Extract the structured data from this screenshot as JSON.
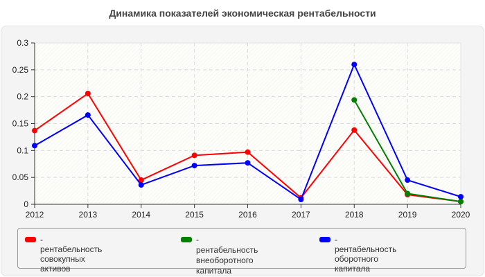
{
  "chart_data": {
    "type": "line",
    "title": "Динамика показателей экономическая рентабельности",
    "xlabel": "",
    "ylabel": "",
    "x": [
      "2012",
      "2013",
      "2014",
      "2015",
      "2016",
      "2017",
      "2018",
      "2019",
      "2020"
    ],
    "ylim": [
      0,
      0.3
    ],
    "yticks": [
      "0",
      "0.05",
      "0.1",
      "0.15",
      "0.2",
      "0.25",
      "0.3"
    ],
    "grid": true,
    "legend_position": "bottom",
    "series": [
      {
        "name": "рентабельность совокупных активов",
        "color": "#ff0000",
        "values": [
          0.137,
          0.206,
          0.045,
          0.091,
          0.097,
          0.012,
          0.138,
          0.018,
          0.005
        ]
      },
      {
        "name": "рентабельность внеоборотного капитала",
        "color": "#008000",
        "values": [
          null,
          null,
          null,
          null,
          null,
          null,
          0.194,
          0.02,
          0.005
        ]
      },
      {
        "name": "рентабельность оборотного капитала",
        "color": "#0000ff",
        "values": [
          0.109,
          0.166,
          0.036,
          0.072,
          0.077,
          0.009,
          0.26,
          0.045,
          0.014
        ]
      }
    ]
  },
  "legend": {
    "items": [
      {
        "label": "- рентабельность совокупных\nактивов",
        "color": "#ff0000"
      },
      {
        "label": "- рентабельность\nвнеоборотного капитала",
        "color": "#008000"
      },
      {
        "label": "- рентабельность оборотного\nкапитала",
        "color": "#0000ff"
      }
    ]
  }
}
